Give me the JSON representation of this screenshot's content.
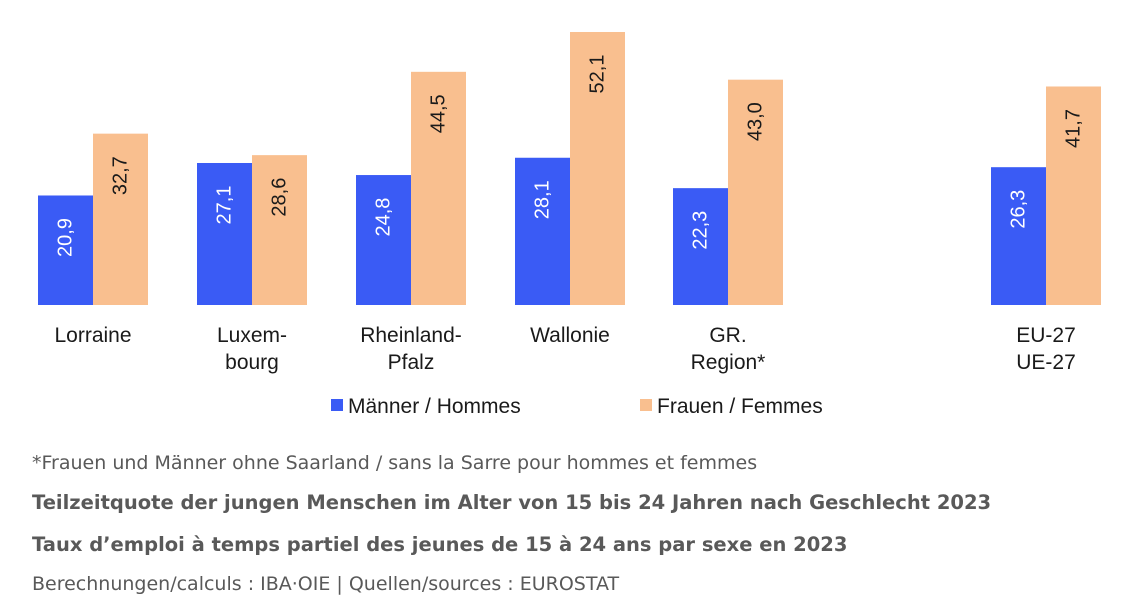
{
  "chart_data": {
    "type": "bar",
    "categories": [
      "Lorraine",
      "Luxem-\nbourg",
      "Rheinland-\nPfalz",
      "Wallonie",
      "GR.\nRegion*",
      "EU-27\nUE-27"
    ],
    "series": [
      {
        "name": "Männer / Hommes",
        "values": [
          20.9,
          27.1,
          24.8,
          28.1,
          22.3,
          26.3
        ],
        "labels": [
          "20,9",
          "27,1",
          "24,8",
          "28,1",
          "22,3",
          "26,3"
        ]
      },
      {
        "name": "Frauen / Femmes",
        "values": [
          32.7,
          28.6,
          44.5,
          52.1,
          43.0,
          41.7
        ],
        "labels": [
          "32,7",
          "28,6",
          "44,5",
          "52,1",
          "43,0",
          "41,7"
        ]
      }
    ],
    "ylim": [
      0,
      55
    ],
    "grid": false,
    "legend": "bottom",
    "colors": [
      "#3A5BF5",
      "#F9BF8F"
    ]
  },
  "footer": {
    "note": "*Frauen und Männer ohne Saarland / sans la Sarre pour hommes et femmes",
    "title_de": "Teilzeitquote der jungen Menschen im Alter von 15 bis 24 Jahren nach Geschlecht 2023",
    "title_fr": "Taux d’emploi à temps partiel des jeunes de 15 à 24 ans par sexe en 2023",
    "source": "Berechnungen/calculs : IBA·OIE | Quellen/sources : EUROSTAT"
  }
}
